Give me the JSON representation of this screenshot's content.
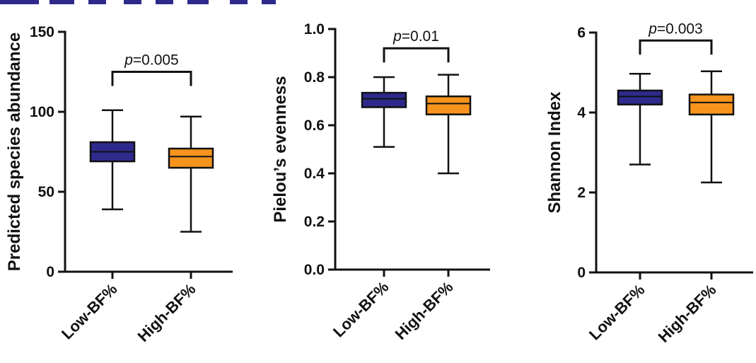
{
  "colors": {
    "low": "#2e2a8c",
    "high": "#f7941d",
    "axis": "#111111"
  },
  "chart_data": [
    {
      "type": "box",
      "ylabel": "Predicted species abundance",
      "categories": [
        "Low-BF%",
        "High-BF%"
      ],
      "ylim": [
        0,
        150
      ],
      "yticks": [
        "0",
        "50",
        "100",
        "150"
      ],
      "ytick_values": [
        0,
        50,
        100,
        150
      ],
      "boxes": [
        {
          "name": "Low-BF%",
          "min": 39,
          "q1": 69,
          "median": 75,
          "q3": 81,
          "max": 101
        },
        {
          "name": "High-BF%",
          "min": 25,
          "q1": 65,
          "median": 72,
          "q3": 77,
          "max": 97
        }
      ],
      "annotation": {
        "italic": "p",
        "text": "=0.005",
        "y": 125
      }
    },
    {
      "type": "box",
      "ylabel": "Pielou’s evenness",
      "categories": [
        "Low-BF%",
        "High-BF%"
      ],
      "ylim": [
        0,
        1.0
      ],
      "yticks": [
        "0.0",
        "0.2",
        "0.4",
        "0.6",
        "0.8",
        "1.0"
      ],
      "ytick_values": [
        0,
        0.2,
        0.4,
        0.6,
        0.8,
        1.0
      ],
      "boxes": [
        {
          "name": "Low-BF%",
          "min": 0.51,
          "q1": 0.675,
          "median": 0.71,
          "q3": 0.735,
          "max": 0.8
        },
        {
          "name": "High-BF%",
          "min": 0.4,
          "q1": 0.645,
          "median": 0.69,
          "q3": 0.72,
          "max": 0.81
        }
      ],
      "annotation": {
        "italic": "p",
        "text": "=0.01",
        "y": 0.92
      }
    },
    {
      "type": "box",
      "ylabel": "Shannon Index",
      "categories": [
        "Low-BF%",
        "High-BF%"
      ],
      "ylim": [
        0,
        6
      ],
      "yticks": [
        "0",
        "2",
        "4",
        "6"
      ],
      "ytick_values": [
        0,
        2,
        4,
        6
      ],
      "boxes": [
        {
          "name": "Low-BF%",
          "min": 2.7,
          "q1": 4.2,
          "median": 4.4,
          "q3": 4.55,
          "max": 4.97
        },
        {
          "name": "High-BF%",
          "min": 2.25,
          "q1": 3.95,
          "median": 4.25,
          "q3": 4.45,
          "max": 5.03
        }
      ],
      "annotation": {
        "italic": "p",
        "text": "=0.003",
        "y": 5.8
      }
    }
  ]
}
